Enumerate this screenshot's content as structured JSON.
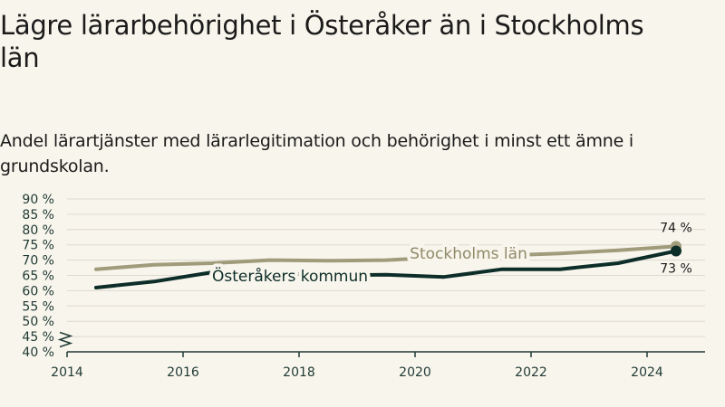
{
  "title": "Lägre lärarbehörighet i Österåker än i Stockholms län",
  "subtitle": "Andel lärartjänster med lärarlegitimation och behörighet i minst ett ämne i grundskolan.",
  "chart_data": {
    "type": "line",
    "x_ticks": [
      "2014",
      "2016",
      "2018",
      "2020",
      "2022",
      "2024"
    ],
    "y_ticks": [
      "40 %",
      "45 %",
      "50 %",
      "55 %",
      "60 %",
      "65 %",
      "70 %",
      "75 %",
      "80 %",
      "85 %",
      "90 %"
    ],
    "xlim": [
      2014,
      2025
    ],
    "ylim": [
      40,
      90
    ],
    "axis_break": true,
    "grid": true,
    "x": [
      2014.5,
      2015.5,
      2016.5,
      2017.5,
      2018.5,
      2019.5,
      2020.5,
      2021.5,
      2022.5,
      2023.5,
      2024.5
    ],
    "series": [
      {
        "name": "Stockholms län",
        "color": "#a09b7b",
        "values": [
          67,
          68.5,
          69,
          70,
          69.8,
          70,
          71,
          71.5,
          72.2,
          73.2,
          74.5
        ],
        "end_label": "74 %"
      },
      {
        "name": "Österåkers kommun",
        "color": "#0c2d28",
        "values": [
          61,
          63,
          66,
          65.8,
          65,
          65.2,
          64.5,
          67,
          67,
          69,
          73
        ],
        "end_label": "73 %"
      }
    ]
  }
}
